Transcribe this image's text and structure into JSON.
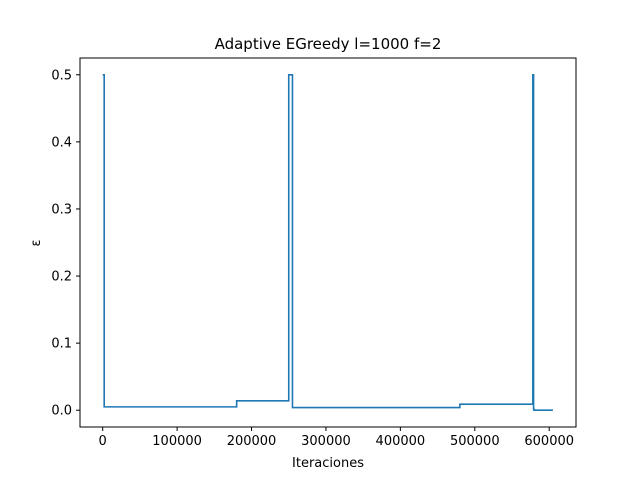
{
  "chart_data": {
    "type": "line",
    "title": "Adaptive EGreedy l=1000 f=2",
    "xlabel": "Iteraciones",
    "ylabel": "ε",
    "xlim": [
      -30500,
      636000
    ],
    "ylim": [
      -0.025,
      0.525
    ],
    "xticks": [
      0,
      100000,
      200000,
      300000,
      400000,
      500000,
      600000
    ],
    "xtick_labels": [
      "0",
      "100000",
      "200000",
      "300000",
      "400000",
      "500000",
      "600000"
    ],
    "yticks": [
      0.0,
      0.1,
      0.2,
      0.3,
      0.4,
      0.5
    ],
    "ytick_labels": [
      "0.0",
      "0.1",
      "0.2",
      "0.3",
      "0.4",
      "0.5"
    ],
    "grid": false,
    "legend": "none",
    "color": "#1f77b4",
    "series": [
      {
        "x": [
          0,
          2000,
          2000,
          180000,
          180000,
          250000,
          250000,
          255000,
          255000,
          480000,
          480000,
          578000,
          578000,
          579000,
          579000,
          580000,
          580000,
          605000
        ],
        "y": [
          0.5,
          0.5,
          0.005,
          0.005,
          0.014,
          0.014,
          0.5,
          0.5,
          0.004,
          0.004,
          0.009,
          0.009,
          0.5,
          0.5,
          0.001,
          0.001,
          0.0,
          0.0
        ]
      }
    ]
  }
}
